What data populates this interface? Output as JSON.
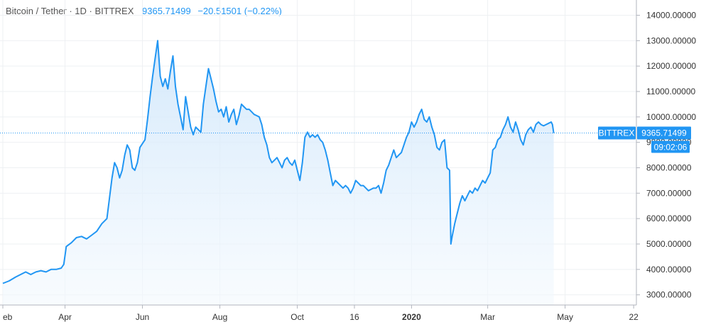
{
  "legend": {
    "symbol": "Bitcoin / Tether · 1D · BITTREX",
    "last_value": "9365.71499",
    "change": "−20.51501 (−0.22%)"
  },
  "price_label": {
    "exchange": "BITTREX",
    "value": "9365.71499",
    "countdown": "09:02:06"
  },
  "colors": {
    "line": "#2196f3",
    "fill_top": "#cfe6fb",
    "fill_bottom": "#f3f9fe",
    "grid": "#eef0f3",
    "axis_text": "#333333"
  },
  "chart_data": {
    "type": "area",
    "title": "Bitcoin / Tether",
    "exchange": "BITTREX",
    "interval": "1D",
    "ylim": [
      2600,
      14600
    ],
    "y_ticks": [
      "3000.00000",
      "4000.00000",
      "5000.00000",
      "6000.00000",
      "7000.00000",
      "8000.00000",
      "9000.00000",
      "10000.00000",
      "11000.00000",
      "12000.00000",
      "13000.00000",
      "14000.00000"
    ],
    "x_ticks": [
      {
        "label": "eb",
        "t": 0
      },
      {
        "label": "Apr",
        "t": 49
      },
      {
        "label": "Jun",
        "t": 110
      },
      {
        "label": "Aug",
        "t": 171
      },
      {
        "label": "Oct",
        "t": 232
      },
      {
        "label": "16",
        "t": 277
      },
      {
        "label": "2020",
        "t": 322
      },
      {
        "label": "Mar",
        "t": 382
      },
      {
        "label": "May",
        "t": 443
      },
      {
        "label": "22",
        "t": 497
      }
    ],
    "last_value": 9365.71499,
    "series": [
      {
        "values": [
          [
            0,
            3450
          ],
          [
            5,
            3550
          ],
          [
            10,
            3700
          ],
          [
            14,
            3800
          ],
          [
            18,
            3900
          ],
          [
            22,
            3800
          ],
          [
            26,
            3900
          ],
          [
            30,
            3950
          ],
          [
            34,
            3900
          ],
          [
            38,
            4000
          ],
          [
            42,
            4000
          ],
          [
            46,
            4050
          ],
          [
            48,
            4200
          ],
          [
            50,
            4900
          ],
          [
            54,
            5050
          ],
          [
            58,
            5250
          ],
          [
            62,
            5300
          ],
          [
            66,
            5200
          ],
          [
            70,
            5350
          ],
          [
            74,
            5500
          ],
          [
            78,
            5800
          ],
          [
            82,
            6000
          ],
          [
            84,
            6800
          ],
          [
            86,
            7600
          ],
          [
            88,
            8200
          ],
          [
            90,
            8000
          ],
          [
            92,
            7600
          ],
          [
            94,
            7900
          ],
          [
            96,
            8500
          ],
          [
            98,
            8900
          ],
          [
            100,
            8700
          ],
          [
            102,
            8000
          ],
          [
            104,
            7900
          ],
          [
            106,
            8200
          ],
          [
            108,
            8800
          ],
          [
            112,
            9100
          ],
          [
            114,
            9900
          ],
          [
            116,
            10800
          ],
          [
            118,
            11600
          ],
          [
            120,
            12300
          ],
          [
            122,
            13000
          ],
          [
            124,
            11600
          ],
          [
            126,
            11200
          ],
          [
            128,
            11500
          ],
          [
            130,
            11100
          ],
          [
            132,
            11800
          ],
          [
            134,
            12400
          ],
          [
            136,
            11200
          ],
          [
            138,
            10500
          ],
          [
            140,
            10000
          ],
          [
            142,
            9500
          ],
          [
            144,
            10800
          ],
          [
            146,
            10200
          ],
          [
            148,
            9600
          ],
          [
            150,
            9300
          ],
          [
            152,
            9600
          ],
          [
            154,
            9500
          ],
          [
            156,
            9400
          ],
          [
            158,
            10500
          ],
          [
            160,
            11200
          ],
          [
            162,
            11900
          ],
          [
            164,
            11500
          ],
          [
            166,
            11100
          ],
          [
            168,
            10600
          ],
          [
            170,
            10200
          ],
          [
            172,
            10300
          ],
          [
            174,
            10000
          ],
          [
            176,
            10400
          ],
          [
            178,
            9800
          ],
          [
            180,
            10100
          ],
          [
            182,
            10300
          ],
          [
            184,
            9700
          ],
          [
            186,
            10050
          ],
          [
            188,
            10500
          ],
          [
            190,
            10400
          ],
          [
            192,
            10300
          ],
          [
            194,
            10300
          ],
          [
            196,
            10200
          ],
          [
            198,
            10100
          ],
          [
            200,
            10050
          ],
          [
            202,
            10000
          ],
          [
            204,
            9700
          ],
          [
            206,
            9200
          ],
          [
            208,
            8900
          ],
          [
            210,
            8400
          ],
          [
            212,
            8200
          ],
          [
            214,
            8300
          ],
          [
            216,
            8400
          ],
          [
            218,
            8200
          ],
          [
            220,
            8000
          ],
          [
            222,
            8300
          ],
          [
            224,
            8400
          ],
          [
            226,
            8200
          ],
          [
            228,
            8100
          ],
          [
            230,
            8300
          ],
          [
            232,
            7900
          ],
          [
            234,
            7500
          ],
          [
            236,
            8200
          ],
          [
            238,
            9200
          ],
          [
            240,
            9400
          ],
          [
            242,
            9200
          ],
          [
            244,
            9300
          ],
          [
            246,
            9200
          ],
          [
            248,
            9300
          ],
          [
            250,
            9100
          ],
          [
            252,
            9000
          ],
          [
            254,
            8700
          ],
          [
            256,
            8300
          ],
          [
            258,
            7800
          ],
          [
            260,
            7300
          ],
          [
            262,
            7500
          ],
          [
            264,
            7400
          ],
          [
            266,
            7300
          ],
          [
            268,
            7200
          ],
          [
            270,
            7300
          ],
          [
            272,
            7200
          ],
          [
            274,
            7000
          ],
          [
            276,
            7200
          ],
          [
            278,
            7500
          ],
          [
            280,
            7400
          ],
          [
            282,
            7300
          ],
          [
            284,
            7300
          ],
          [
            286,
            7200
          ],
          [
            288,
            7100
          ],
          [
            290,
            7150
          ],
          [
            292,
            7200
          ],
          [
            294,
            7200
          ],
          [
            296,
            7300
          ],
          [
            298,
            7000
          ],
          [
            300,
            7400
          ],
          [
            302,
            7900
          ],
          [
            304,
            8100
          ],
          [
            306,
            8400
          ],
          [
            308,
            8700
          ],
          [
            310,
            8400
          ],
          [
            312,
            8500
          ],
          [
            314,
            8600
          ],
          [
            316,
            8900
          ],
          [
            318,
            9200
          ],
          [
            320,
            9400
          ],
          [
            322,
            9800
          ],
          [
            324,
            9600
          ],
          [
            326,
            9800
          ],
          [
            328,
            10100
          ],
          [
            330,
            10300
          ],
          [
            332,
            9900
          ],
          [
            334,
            9800
          ],
          [
            336,
            10000
          ],
          [
            338,
            9600
          ],
          [
            340,
            9300
          ],
          [
            342,
            8800
          ],
          [
            344,
            8700
          ],
          [
            346,
            9000
          ],
          [
            348,
            9100
          ],
          [
            350,
            8000
          ],
          [
            352,
            7900
          ],
          [
            353,
            5000
          ],
          [
            354,
            5300
          ],
          [
            356,
            5800
          ],
          [
            358,
            6200
          ],
          [
            360,
            6600
          ],
          [
            362,
            6900
          ],
          [
            364,
            6700
          ],
          [
            366,
            6900
          ],
          [
            368,
            7100
          ],
          [
            370,
            7000
          ],
          [
            372,
            7200
          ],
          [
            374,
            7100
          ],
          [
            376,
            7300
          ],
          [
            378,
            7500
          ],
          [
            380,
            7400
          ],
          [
            382,
            7600
          ],
          [
            384,
            7800
          ],
          [
            386,
            8700
          ],
          [
            388,
            8800
          ],
          [
            390,
            9100
          ],
          [
            392,
            9200
          ],
          [
            394,
            9500
          ],
          [
            396,
            9700
          ],
          [
            398,
            10000
          ],
          [
            400,
            9600
          ],
          [
            402,
            9400
          ],
          [
            404,
            9800
          ],
          [
            406,
            9500
          ],
          [
            408,
            9100
          ],
          [
            410,
            8900
          ],
          [
            412,
            9300
          ],
          [
            414,
            9500
          ],
          [
            416,
            9600
          ],
          [
            418,
            9400
          ],
          [
            420,
            9700
          ],
          [
            422,
            9800
          ],
          [
            424,
            9700
          ],
          [
            426,
            9650
          ],
          [
            428,
            9700
          ],
          [
            430,
            9750
          ],
          [
            432,
            9800
          ],
          [
            433,
            9700
          ],
          [
            434,
            9365.71499
          ]
        ]
      }
    ]
  }
}
